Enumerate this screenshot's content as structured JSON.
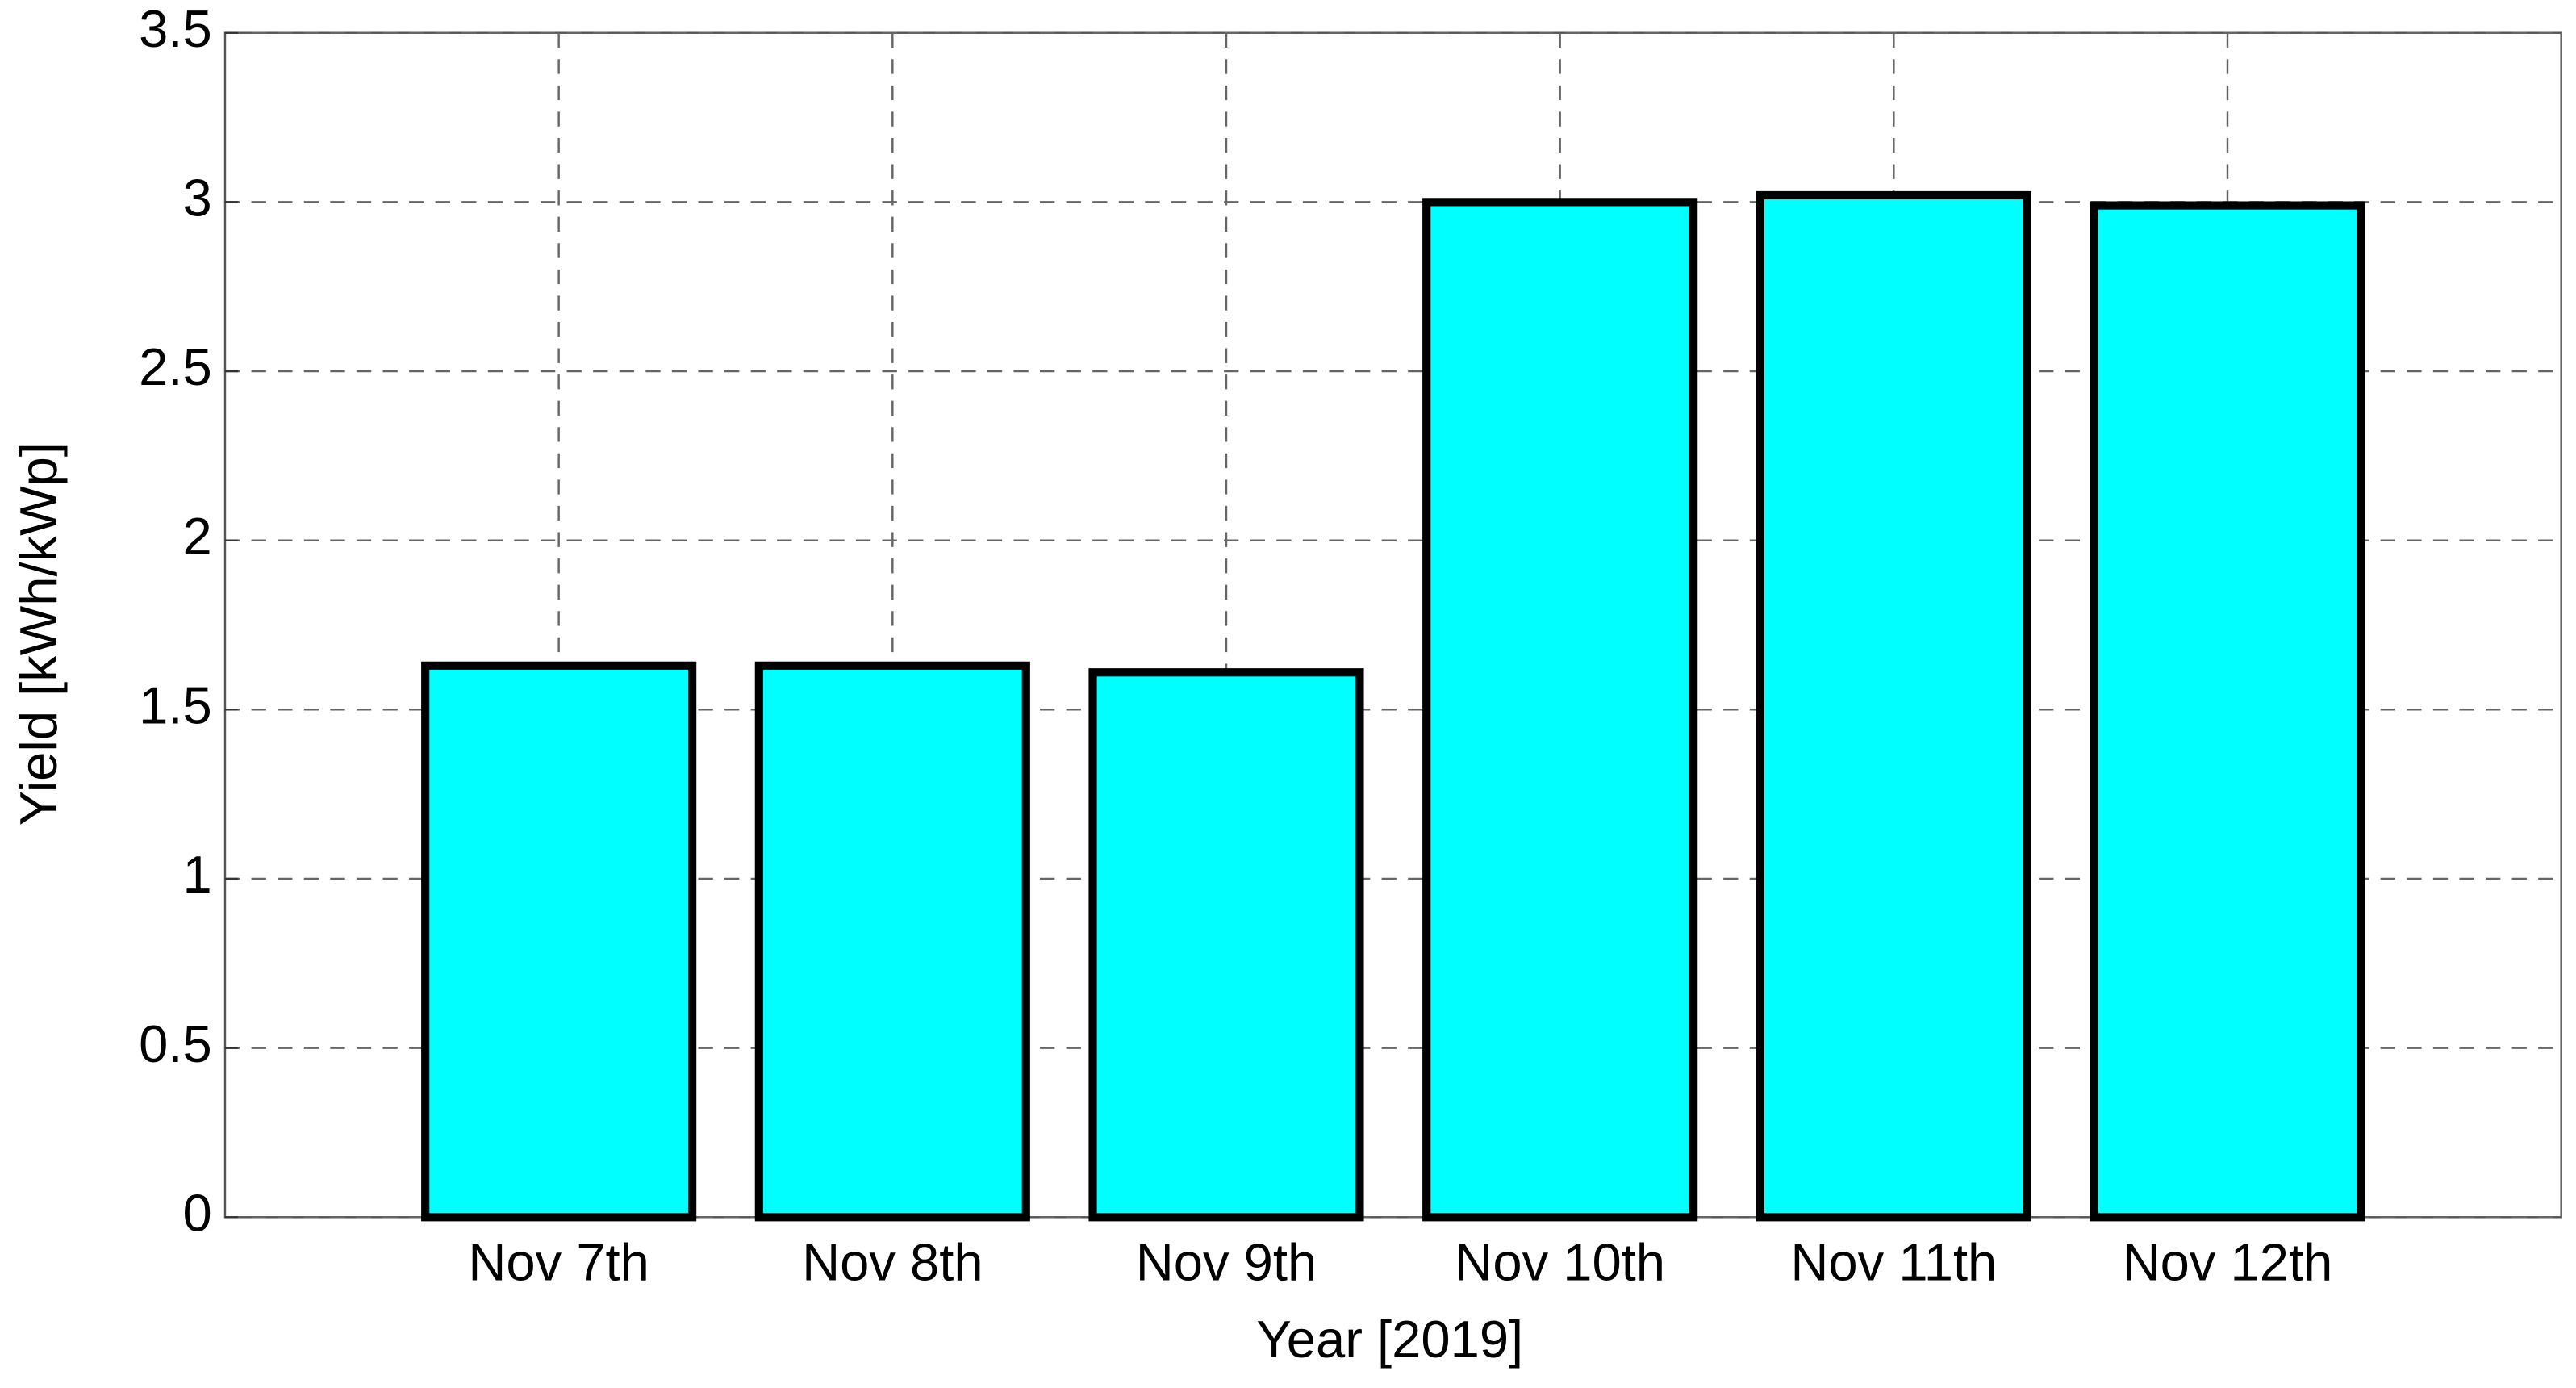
{
  "chart_data": {
    "type": "bar",
    "categories": [
      "Nov 7th",
      "Nov 8th",
      "Nov 9th",
      "Nov 10th",
      "Nov 11th",
      "Nov 12th"
    ],
    "values": [
      1.63,
      1.63,
      1.61,
      3.0,
      3.02,
      2.99
    ],
    "color": "#00ffff",
    "xlabel": "Year [2019]",
    "ylabel": "Yield [kWh/kWp]",
    "ylim": [
      0,
      3.5
    ],
    "yticks": [
      0,
      0.5,
      1,
      1.5,
      2,
      2.5,
      3,
      3.5
    ],
    "grid": true
  }
}
